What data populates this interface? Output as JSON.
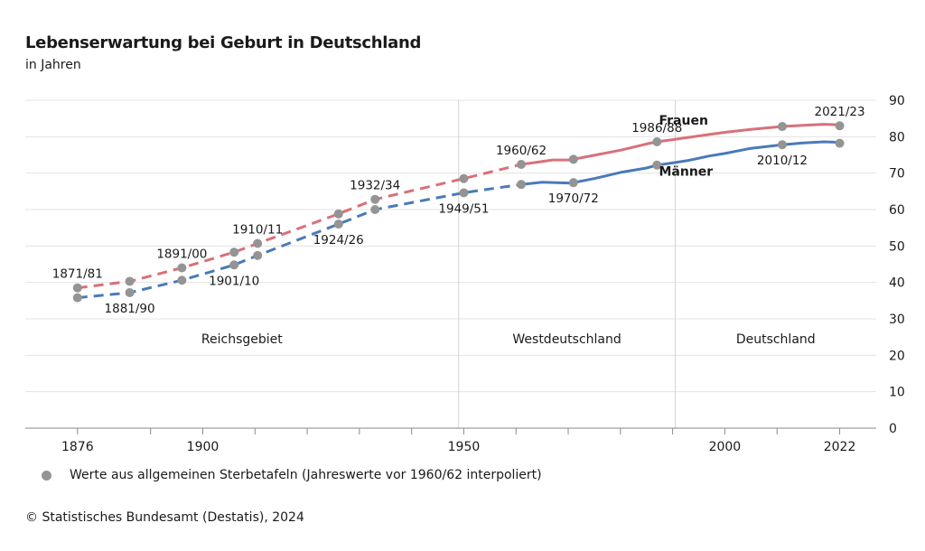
{
  "title": "Lebenserwartung bei Geburt in Deutschland",
  "subtitle": "in Jahren",
  "legend_text": "Werte aus allgemeinen Sterbetafeln (Jahreswerte vor 1960/62 interpoliert)",
  "source": "© Statistisches Bundesamt (Destatis), 2024",
  "colors": {
    "frauen": "#d9707a",
    "maenner": "#4a7ab8",
    "marker": "#949494",
    "grid": "#e3e3e3"
  },
  "chart_data": {
    "type": "line",
    "xlim": [
      1866,
      2029
    ],
    "ylim": [
      0,
      90
    ],
    "y_ticks": [
      0,
      10,
      20,
      30,
      40,
      50,
      60,
      70,
      80,
      90
    ],
    "x_tick_labels": [
      1876,
      1900,
      1950,
      2000,
      2022
    ],
    "x_minor_ticks": [
      1890,
      1910,
      1920,
      1930,
      1940,
      1960,
      1970,
      1980,
      1990,
      2010
    ],
    "regions": [
      {
        "label": "Reichsgebiet",
        "from": 1866,
        "to": 1949
      },
      {
        "label": "Westdeutschland",
        "from": 1949,
        "to": 1990.5
      },
      {
        "label": "Deutschland",
        "from": 1990.5,
        "to": 2029
      }
    ],
    "dividers": [
      1949,
      1990.5
    ],
    "series": [
      {
        "name": "Frauen",
        "label_position": {
          "x": 1986,
          "y": 84.5
        },
        "dashed": [
          [
            1876,
            38.5
          ],
          [
            1886,
            40.3
          ],
          [
            1896,
            44.0
          ],
          [
            1906,
            48.3
          ],
          [
            1910.5,
            50.7
          ],
          [
            1926,
            58.8
          ],
          [
            1933,
            62.8
          ],
          [
            1950,
            68.5
          ],
          [
            1961,
            72.4
          ]
        ],
        "solid": [
          [
            1961,
            72.4
          ],
          [
            1964,
            73.0
          ],
          [
            1967,
            73.6
          ],
          [
            1970,
            73.6
          ],
          [
            1971,
            73.8
          ],
          [
            1975,
            74.9
          ],
          [
            1980,
            76.3
          ],
          [
            1985,
            78.0
          ],
          [
            1987,
            78.6
          ],
          [
            1990,
            79.2
          ],
          [
            1993,
            79.8
          ],
          [
            1997,
            80.6
          ],
          [
            2000,
            81.2
          ],
          [
            2005,
            82.0
          ],
          [
            2011,
            82.8
          ],
          [
            2015,
            83.1
          ],
          [
            2019,
            83.4
          ],
          [
            2021,
            83.3
          ],
          [
            2022,
            83.0
          ]
        ]
      },
      {
        "name": "Männer",
        "label_position": {
          "x": 1986,
          "y": 70.5
        },
        "dashed": [
          [
            1876,
            35.8
          ],
          [
            1886,
            37.2
          ],
          [
            1896,
            40.6
          ],
          [
            1906,
            44.8
          ],
          [
            1910.5,
            47.4
          ],
          [
            1926,
            56.0
          ],
          [
            1933,
            60.0
          ],
          [
            1950,
            64.6
          ],
          [
            1961,
            66.9
          ]
        ],
        "solid": [
          [
            1961,
            66.9
          ],
          [
            1965,
            67.5
          ],
          [
            1970,
            67.3
          ],
          [
            1971,
            67.4
          ],
          [
            1975,
            68.5
          ],
          [
            1980,
            70.2
          ],
          [
            1985,
            71.4
          ],
          [
            1987,
            72.2
          ],
          [
            1990,
            72.8
          ],
          [
            1993,
            73.5
          ],
          [
            1997,
            74.7
          ],
          [
            2000,
            75.4
          ],
          [
            2005,
            76.8
          ],
          [
            2011,
            77.8
          ],
          [
            2015,
            78.3
          ],
          [
            2019,
            78.6
          ],
          [
            2021,
            78.5
          ],
          [
            2022,
            78.2
          ]
        ]
      }
    ],
    "markers": [
      [
        1876,
        38.5
      ],
      [
        1876,
        35.8
      ],
      [
        1886,
        40.3
      ],
      [
        1886,
        37.2
      ],
      [
        1896,
        44.0
      ],
      [
        1896,
        40.6
      ],
      [
        1906,
        48.3
      ],
      [
        1906,
        44.8
      ],
      [
        1910.5,
        50.7
      ],
      [
        1910.5,
        47.4
      ],
      [
        1926,
        58.8
      ],
      [
        1926,
        56.0
      ],
      [
        1933,
        62.8
      ],
      [
        1933,
        60.0
      ],
      [
        1950,
        68.5
      ],
      [
        1950,
        64.6
      ],
      [
        1961,
        72.4
      ],
      [
        1961,
        66.9
      ],
      [
        1971,
        73.8
      ],
      [
        1971,
        67.4
      ],
      [
        1987,
        78.6
      ],
      [
        1987,
        72.2
      ],
      [
        2011,
        82.8
      ],
      [
        2011,
        77.8
      ],
      [
        2022,
        83.0
      ],
      [
        2022,
        78.2
      ]
    ],
    "annotations": [
      {
        "text": "1871/81",
        "x": 1876,
        "y": 38.5,
        "pos": "above"
      },
      {
        "text": "1881/90",
        "x": 1886,
        "y": 37.2,
        "pos": "below"
      },
      {
        "text": "1891/00",
        "x": 1896,
        "y": 44.0,
        "pos": "above"
      },
      {
        "text": "1901/10",
        "x": 1906,
        "y": 44.8,
        "pos": "below"
      },
      {
        "text": "1910/11",
        "x": 1910.5,
        "y": 50.7,
        "pos": "above"
      },
      {
        "text": "1924/26",
        "x": 1926,
        "y": 56.0,
        "pos": "below"
      },
      {
        "text": "1932/34",
        "x": 1933,
        "y": 62.8,
        "pos": "above"
      },
      {
        "text": "1949/51",
        "x": 1950,
        "y": 64.6,
        "pos": "below"
      },
      {
        "text": "1960/62",
        "x": 1961,
        "y": 72.4,
        "pos": "above"
      },
      {
        "text": "1970/72",
        "x": 1971,
        "y": 67.4,
        "pos": "below"
      },
      {
        "text": "1986/88",
        "x": 1987,
        "y": 78.6,
        "pos": "above"
      },
      {
        "text": "2010/12",
        "x": 2011,
        "y": 77.8,
        "pos": "below"
      },
      {
        "text": "2021/23",
        "x": 2022,
        "y": 83.0,
        "pos": "above"
      }
    ]
  }
}
